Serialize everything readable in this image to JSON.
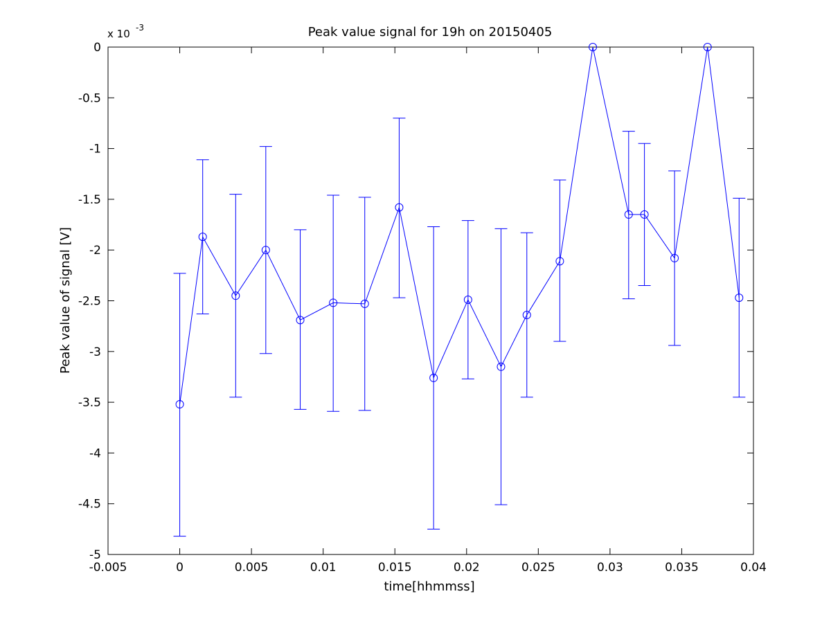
{
  "chart_data": {
    "type": "line",
    "title": "Peak value signal for 19h on 20150405",
    "xlabel": "time[hhmmss]",
    "ylabel": "Peak value of signal [V]",
    "y_multiplier_label": "x 10",
    "y_multiplier_exponent": "-3",
    "xlim": [
      -0.005,
      0.04
    ],
    "ylim": [
      -5,
      0
    ],
    "x_ticks": [
      -0.005,
      0,
      0.005,
      0.01,
      0.015,
      0.02,
      0.025,
      0.03,
      0.035,
      0.04
    ],
    "x_tick_labels": [
      "-0.005",
      "0",
      "0.005",
      "0.01",
      "0.015",
      "0.02",
      "0.025",
      "0.03",
      "0.035",
      "0.04"
    ],
    "y_ticks": [
      0,
      -0.5,
      -1,
      -1.5,
      -2,
      -2.5,
      -3,
      -3.5,
      -4,
      -4.5,
      -5
    ],
    "y_tick_labels": [
      "0",
      "-0.5",
      "-1",
      "-1.5",
      "-2",
      "-2.5",
      "-3",
      "-3.5",
      "-4",
      "-4.5",
      "-5"
    ],
    "grid": false,
    "legend": "none",
    "series_color": "#0000ff",
    "marker": "circle",
    "series": [
      {
        "x": [
          0,
          0.0016,
          0.0039,
          0.006,
          0.0084,
          0.0107,
          0.0129,
          0.0153,
          0.0177,
          0.0201,
          0.0224,
          0.0242,
          0.0265,
          0.0288,
          0.0313,
          0.0324,
          0.0345,
          0.0368,
          0.039
        ],
        "y": [
          -3.52,
          -1.87,
          -2.45,
          -2.0,
          -2.69,
          -2.52,
          -2.53,
          -1.58,
          -3.26,
          -2.49,
          -3.15,
          -2.64,
          -2.11,
          0.0,
          -1.65,
          -1.65,
          -2.08,
          0.0,
          -2.47
        ],
        "err_low": [
          -4.82,
          -2.63,
          -3.45,
          -3.02,
          -3.57,
          -3.59,
          -3.58,
          -2.47,
          -4.75,
          -3.27,
          -4.51,
          -3.45,
          -2.9,
          null,
          -2.48,
          -2.35,
          -2.94,
          null,
          -3.45
        ],
        "err_high": [
          -2.23,
          -1.11,
          -1.45,
          -0.98,
          -1.8,
          -1.46,
          -1.48,
          -0.7,
          -1.77,
          -1.71,
          -1.79,
          -1.83,
          -1.31,
          null,
          -0.83,
          -0.95,
          -1.22,
          null,
          -1.49
        ]
      }
    ]
  }
}
